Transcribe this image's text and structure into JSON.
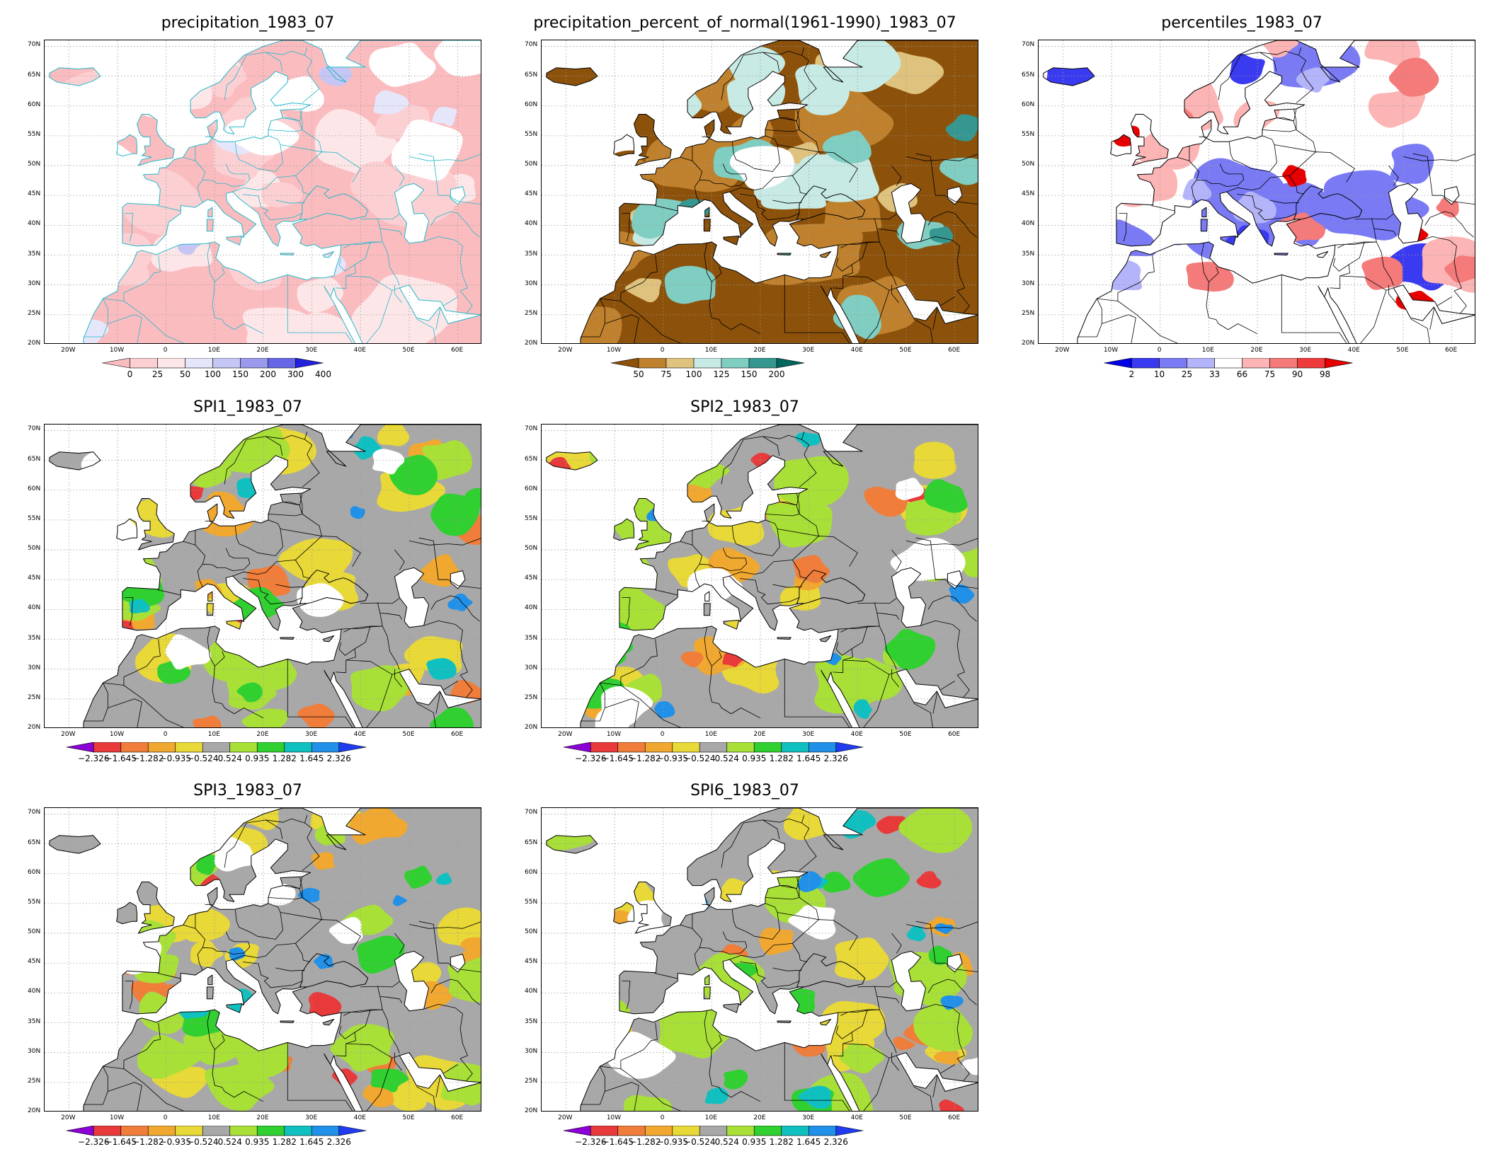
{
  "axes": {
    "lat_labels": [
      "70N",
      "65N",
      "60N",
      "55N",
      "50N",
      "45N",
      "40N",
      "35N",
      "30N",
      "25N",
      "20N"
    ],
    "lon_labels": [
      "20W",
      "10W",
      "0",
      "10E",
      "20E",
      "30E",
      "40E",
      "50E",
      "60E"
    ]
  },
  "panels": [
    {
      "id": "precipitation",
      "title": "precipitation_1983_07",
      "style": "precip",
      "colorbar": {
        "labels": [
          "0",
          "25",
          "50",
          "100",
          "150",
          "200",
          "300",
          "400"
        ],
        "colors": [
          "#fbbcc0",
          "#fcd0d3",
          "#fde6e8",
          "#e6e6fb",
          "#c6c6f5",
          "#9999ee",
          "#6666e6",
          "#2222dd"
        ]
      }
    },
    {
      "id": "percent_of_normal",
      "title": "precipitation_percent_of_normal(1961-1990)_1983_07",
      "style": "pct",
      "colorbar": {
        "labels": [
          "50",
          "75",
          "100",
          "125",
          "150",
          "200"
        ],
        "colors": [
          "#8c510a",
          "#bf812d",
          "#dfc27d",
          "#c7eae5",
          "#80cdc1",
          "#35978f",
          "#01665e"
        ]
      }
    },
    {
      "id": "percentiles",
      "title": "percentiles_1983_07",
      "style": "perc",
      "colorbar": {
        "labels": [
          "2",
          "10",
          "25",
          "33",
          "66",
          "75",
          "90",
          "98"
        ],
        "colors": [
          "#0000e6",
          "#3a3af0",
          "#7a7af5",
          "#b4b4fa",
          "#ffffff",
          "#fcb4b4",
          "#f57a7a",
          "#ee3a3a",
          "#e60000"
        ]
      }
    },
    {
      "id": "spi1",
      "title": "SPI1_1983_07",
      "style": "spi",
      "variant": 1,
      "colorbar": {
        "labels": [
          "−2.326",
          "−1.645",
          "−1.282",
          "−0.935",
          "−0.524",
          "0.524",
          "0.935",
          "1.282",
          "1.645",
          "2.326"
        ],
        "colors": [
          "#8a00d6",
          "#e83a3a",
          "#f07d3a",
          "#f0a830",
          "#e8d838",
          "#a8a8a8",
          "#a8e038",
          "#30d030",
          "#10c0c0",
          "#2090e8",
          "#1f3cf0"
        ]
      }
    },
    {
      "id": "spi2",
      "title": "SPI2_1983_07",
      "style": "spi",
      "variant": 2,
      "colorbar": {
        "labels": [
          "−2.326",
          "−1.645",
          "−1.282",
          "−0.935",
          "−0.524",
          "0.524",
          "0.935",
          "1.282",
          "1.645",
          "2.326"
        ],
        "colors": [
          "#8a00d6",
          "#e83a3a",
          "#f07d3a",
          "#f0a830",
          "#e8d838",
          "#a8a8a8",
          "#a8e038",
          "#30d030",
          "#10c0c0",
          "#2090e8",
          "#1f3cf0"
        ]
      }
    },
    {
      "id": "spi3",
      "title": "SPI3_1983_07",
      "style": "spi",
      "variant": 3,
      "colorbar": {
        "labels": [
          "−2.326",
          "−1.645",
          "−1.282",
          "−0.935",
          "−0.524",
          "0.524",
          "0.935",
          "1.282",
          "1.645",
          "2.326"
        ],
        "colors": [
          "#8a00d6",
          "#e83a3a",
          "#f07d3a",
          "#f0a830",
          "#e8d838",
          "#a8a8a8",
          "#a8e038",
          "#30d030",
          "#10c0c0",
          "#2090e8",
          "#1f3cf0"
        ]
      }
    },
    {
      "id": "spi6",
      "title": "SPI6_1983_07",
      "style": "spi",
      "variant": 6,
      "colorbar": {
        "labels": [
          "−2.326",
          "−1.645",
          "−1.282",
          "−0.935",
          "−0.524",
          "0.524",
          "0.935",
          "1.282",
          "1.645",
          "2.326"
        ],
        "colors": [
          "#8a00d6",
          "#e83a3a",
          "#f07d3a",
          "#f0a830",
          "#e8d838",
          "#a8a8a8",
          "#a8e038",
          "#30d030",
          "#10c0c0",
          "#2090e8",
          "#1f3cf0"
        ]
      }
    }
  ]
}
